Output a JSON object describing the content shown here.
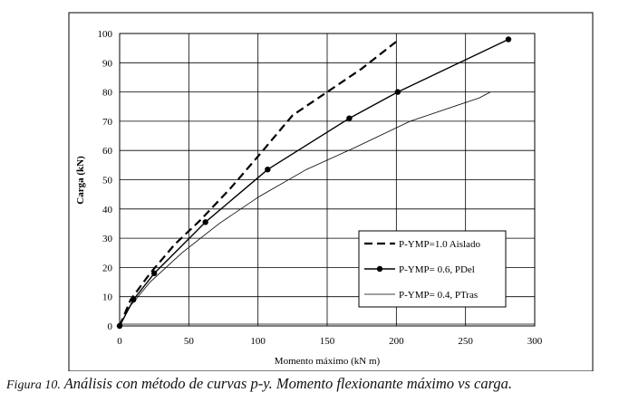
{
  "chart_data": {
    "type": "line",
    "xlabel": "Momento máximo (kN m)",
    "ylabel": "Carga (kN)",
    "xlim": [
      0,
      300
    ],
    "ylim": [
      0,
      100
    ],
    "x_ticks": [
      0,
      50,
      100,
      150,
      200,
      250,
      300
    ],
    "y_ticks": [
      0,
      10,
      20,
      30,
      40,
      50,
      60,
      70,
      80,
      90,
      100
    ],
    "grid": true,
    "legend_position": "bottom-right",
    "series": [
      {
        "name": "P-YMP=1.0 Aislado",
        "style": "dashed-thick",
        "color": "#000000",
        "points": [
          [
            0,
            0
          ],
          [
            8,
            9
          ],
          [
            22,
            18
          ],
          [
            40,
            28
          ],
          [
            58,
            36
          ],
          [
            80,
            47
          ],
          [
            100,
            58
          ],
          [
            125,
            72
          ],
          [
            150,
            80
          ],
          [
            175,
            88
          ],
          [
            202,
            98
          ]
        ]
      },
      {
        "name": "P-YMP= 0.6, PDel",
        "style": "solid-markers",
        "color": "#000000",
        "points": [
          [
            0,
            0
          ],
          [
            10,
            9
          ],
          [
            25,
            18
          ],
          [
            62,
            35.5
          ],
          [
            107,
            53.5
          ],
          [
            166,
            71
          ],
          [
            201,
            80
          ],
          [
            281,
            98
          ]
        ]
      },
      {
        "name": "P-YMP= 0.4, PTras",
        "style": "solid-thin",
        "color": "#000000",
        "points": [
          [
            0,
            0
          ],
          [
            8,
            7
          ],
          [
            22,
            15
          ],
          [
            45,
            25
          ],
          [
            72,
            35
          ],
          [
            100,
            44
          ],
          [
            135,
            53.5
          ],
          [
            170,
            61
          ],
          [
            210,
            70
          ],
          [
            260,
            78
          ],
          [
            268,
            80
          ]
        ]
      }
    ]
  },
  "caption": {
    "figure_label": "Figura 10.",
    "text": "Análisis con método de curvas p-y. Momento flexionante máximo vs carga."
  }
}
